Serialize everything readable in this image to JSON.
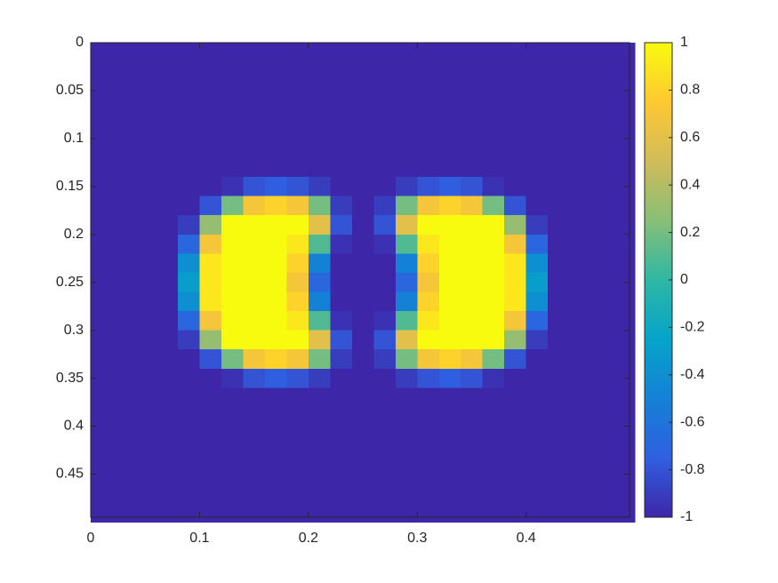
{
  "chart_data": {
    "type": "heatmap",
    "x": [
      0.01,
      0.03,
      0.05,
      0.07,
      0.09,
      0.11,
      0.13,
      0.15,
      0.17,
      0.19,
      0.21,
      0.23,
      0.25,
      0.27,
      0.29,
      0.31,
      0.33,
      0.35,
      0.37,
      0.39,
      0.41,
      0.43,
      0.45,
      0.47,
      0.49
    ],
    "y": [
      0.01,
      0.03,
      0.05,
      0.07,
      0.09,
      0.11,
      0.13,
      0.15,
      0.17,
      0.19,
      0.21,
      0.23,
      0.25,
      0.27,
      0.29,
      0.31,
      0.33,
      0.35,
      0.37,
      0.39,
      0.41,
      0.43,
      0.45,
      0.47,
      0.49
    ],
    "z": [
      [
        -1,
        -1,
        -1,
        -1,
        -1,
        -1,
        -1,
        -1,
        -1,
        -1,
        -1,
        -1,
        -1,
        -1,
        -1,
        -1,
        -1,
        -1,
        -1,
        -1,
        -1,
        -1,
        -1,
        -1,
        -1
      ],
      [
        -1,
        -1,
        -1,
        -1,
        -1,
        -1,
        -1,
        -1,
        -1,
        -1,
        -1,
        -1,
        -1,
        -1,
        -1,
        -1,
        -1,
        -1,
        -1,
        -1,
        -1,
        -1,
        -1,
        -1,
        -1
      ],
      [
        -1,
        -1,
        -1,
        -1,
        -1,
        -1,
        -1,
        -1,
        -1,
        -1,
        -1,
        -1,
        -1,
        -1,
        -1,
        -1,
        -1,
        -1,
        -1,
        -1,
        -1,
        -1,
        -1,
        -1,
        -1
      ],
      [
        -1,
        -1,
        -1,
        -1,
        -1,
        -1,
        -1,
        -1,
        -1,
        -1,
        -1,
        -1,
        -1,
        -1,
        -1,
        -1,
        -1,
        -1,
        -1,
        -1,
        -1,
        -1,
        -1,
        -1,
        -1
      ],
      [
        -1,
        -1,
        -1,
        -1,
        -1,
        -1,
        -1,
        -1,
        -1,
        -1,
        -1,
        -1,
        -1,
        -1,
        -1,
        -1,
        -1,
        -1,
        -1,
        -1,
        -1,
        -1,
        -1,
        -1,
        -1
      ],
      [
        -1,
        -1,
        -1,
        -1,
        -1,
        -1,
        -1,
        -1,
        -1,
        -1,
        -1,
        -1,
        -1,
        -1,
        -1,
        -1,
        -1,
        -1,
        -1,
        -1,
        -1,
        -1,
        -1,
        -1,
        -1
      ],
      [
        -1,
        -1,
        -1,
        -1,
        -1,
        -1,
        -1,
        -1,
        -1,
        -1,
        -1,
        -1,
        -1,
        -1,
        -1,
        -1,
        -1,
        -1,
        -1,
        -1,
        -1,
        -1,
        -1,
        -1,
        -1
      ],
      [
        -1,
        -1,
        -1,
        -1,
        -1,
        -1,
        -0.95,
        -0.8,
        -0.75,
        -0.8,
        -0.9,
        -1,
        -1,
        -1,
        -0.9,
        -0.8,
        -0.75,
        -0.8,
        -0.95,
        -1,
        -1,
        -1,
        -1,
        -1,
        -1
      ],
      [
        -1,
        -1,
        -1,
        -1,
        -1,
        -0.8,
        0.2,
        0.7,
        0.8,
        0.7,
        0.2,
        -0.9,
        -1,
        -0.9,
        0.2,
        0.7,
        0.8,
        0.7,
        0.2,
        -0.8,
        -1,
        -1,
        -1,
        -1,
        -1
      ],
      [
        -1,
        -1,
        -1,
        -1,
        -0.9,
        0.3,
        1,
        1,
        1,
        1,
        0.6,
        -0.8,
        -1,
        -0.8,
        0.6,
        1,
        1,
        1,
        1,
        0.3,
        -0.9,
        -1,
        -1,
        -1,
        -1
      ],
      [
        -1,
        -1,
        -1,
        -1,
        -0.7,
        0.7,
        1,
        1,
        1,
        0.9,
        0.1,
        -0.95,
        -1,
        -0.95,
        0.1,
        0.9,
        1,
        1,
        1,
        0.7,
        -0.7,
        -1,
        -1,
        -1,
        -1
      ],
      [
        -1,
        -1,
        -1,
        -1,
        -0.4,
        0.9,
        1,
        1,
        1,
        0.8,
        -0.5,
        -1,
        -1,
        -1,
        -0.5,
        0.8,
        1,
        1,
        1,
        0.9,
        -0.4,
        -1,
        -1,
        -1,
        -1
      ],
      [
        -1,
        -1,
        -1,
        -1,
        -0.3,
        0.9,
        1,
        1,
        1,
        0.7,
        -0.7,
        -1,
        -1,
        -1,
        -0.7,
        0.7,
        1,
        1,
        1,
        0.9,
        -0.3,
        -1,
        -1,
        -1,
        -1
      ],
      [
        -1,
        -1,
        -1,
        -1,
        -0.4,
        0.9,
        1,
        1,
        1,
        0.8,
        -0.5,
        -1,
        -1,
        -1,
        -0.5,
        0.8,
        1,
        1,
        1,
        0.9,
        -0.4,
        -1,
        -1,
        -1,
        -1
      ],
      [
        -1,
        -1,
        -1,
        -1,
        -0.7,
        0.7,
        1,
        1,
        1,
        0.9,
        0.1,
        -0.95,
        -1,
        -0.95,
        0.1,
        0.9,
        1,
        1,
        1,
        0.7,
        -0.7,
        -1,
        -1,
        -1,
        -1
      ],
      [
        -1,
        -1,
        -1,
        -1,
        -0.9,
        0.3,
        1,
        1,
        1,
        1,
        0.6,
        -0.8,
        -1,
        -0.8,
        0.6,
        1,
        1,
        1,
        1,
        0.3,
        -0.9,
        -1,
        -1,
        -1,
        -1
      ],
      [
        -1,
        -1,
        -1,
        -1,
        -1,
        -0.8,
        0.2,
        0.7,
        0.8,
        0.7,
        0.2,
        -0.9,
        -1,
        -0.9,
        0.2,
        0.7,
        0.8,
        0.7,
        0.2,
        -0.8,
        -1,
        -1,
        -1,
        -1,
        -1
      ],
      [
        -1,
        -1,
        -1,
        -1,
        -1,
        -1,
        -0.95,
        -0.8,
        -0.75,
        -0.8,
        -0.9,
        -1,
        -1,
        -1,
        -0.9,
        -0.8,
        -0.75,
        -0.8,
        -0.95,
        -1,
        -1,
        -1,
        -1,
        -1,
        -1
      ],
      [
        -1,
        -1,
        -1,
        -1,
        -1,
        -1,
        -1,
        -1,
        -1,
        -1,
        -1,
        -1,
        -1,
        -1,
        -1,
        -1,
        -1,
        -1,
        -1,
        -1,
        -1,
        -1,
        -1,
        -1,
        -1
      ],
      [
        -1,
        -1,
        -1,
        -1,
        -1,
        -1,
        -1,
        -1,
        -1,
        -1,
        -1,
        -1,
        -1,
        -1,
        -1,
        -1,
        -1,
        -1,
        -1,
        -1,
        -1,
        -1,
        -1,
        -1,
        -1
      ],
      [
        -1,
        -1,
        -1,
        -1,
        -1,
        -1,
        -1,
        -1,
        -1,
        -1,
        -1,
        -1,
        -1,
        -1,
        -1,
        -1,
        -1,
        -1,
        -1,
        -1,
        -1,
        -1,
        -1,
        -1,
        -1
      ],
      [
        -1,
        -1,
        -1,
        -1,
        -1,
        -1,
        -1,
        -1,
        -1,
        -1,
        -1,
        -1,
        -1,
        -1,
        -1,
        -1,
        -1,
        -1,
        -1,
        -1,
        -1,
        -1,
        -1,
        -1,
        -1
      ],
      [
        -1,
        -1,
        -1,
        -1,
        -1,
        -1,
        -1,
        -1,
        -1,
        -1,
        -1,
        -1,
        -1,
        -1,
        -1,
        -1,
        -1,
        -1,
        -1,
        -1,
        -1,
        -1,
        -1,
        -1,
        -1
      ],
      [
        -1,
        -1,
        -1,
        -1,
        -1,
        -1,
        -1,
        -1,
        -1,
        -1,
        -1,
        -1,
        -1,
        -1,
        -1,
        -1,
        -1,
        -1,
        -1,
        -1,
        -1,
        -1,
        -1,
        -1,
        -1
      ],
      [
        -1,
        -1,
        -1,
        -1,
        -1,
        -1,
        -1,
        -1,
        -1,
        -1,
        -1,
        -1,
        -1,
        -1,
        -1,
        -1,
        -1,
        -1,
        -1,
        -1,
        -1,
        -1,
        -1,
        -1,
        -1
      ]
    ],
    "xlim": [
      0,
      0.495
    ],
    "ylim": [
      0,
      0.495
    ],
    "y_reversed": true,
    "xticks": [
      0,
      0.1,
      0.2,
      0.3,
      0.4
    ],
    "yticks": [
      0,
      0.05,
      0.1,
      0.15,
      0.2,
      0.25,
      0.3,
      0.35,
      0.4,
      0.45
    ],
    "clim": [
      -1,
      1
    ],
    "cticks": [
      -1,
      -0.8,
      -0.6,
      -0.4,
      -0.2,
      0,
      0.2,
      0.4,
      0.6,
      0.8,
      1
    ],
    "colormap": [
      "#3e26a8",
      "#2f5fe0",
      "#1481d6",
      "#06a4ca",
      "#2eb7a4",
      "#87bf77",
      "#d1bb59",
      "#fec832",
      "#f9fb0e"
    ],
    "colorbar": true
  }
}
